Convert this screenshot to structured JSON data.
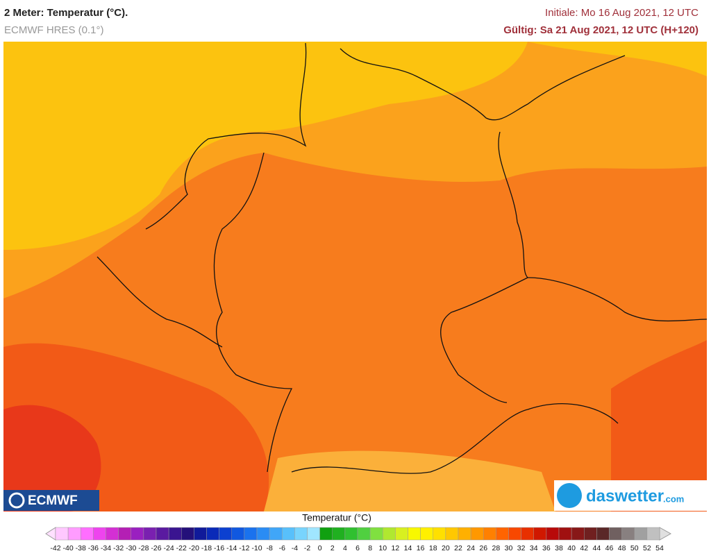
{
  "header": {
    "title": "2 Meter: Temperatur (°C).",
    "model": "ECMWF HRES (0.1°)",
    "initial": "Initiale: Mo 16 Aug 2021, 12 UTC",
    "valid": "Gültig: Sa 21 Aug 2021, 12 UTC (H+120)"
  },
  "logos": {
    "left": "ECMWF",
    "right_brand": "daswetter",
    "right_tld": ".com"
  },
  "legend": {
    "title": "Temperatur (°C)",
    "ticks": [
      -42,
      -40,
      -38,
      -36,
      -34,
      -32,
      -30,
      -28,
      -26,
      -24,
      -22,
      -20,
      -18,
      -16,
      -14,
      -12,
      -10,
      -8,
      -6,
      -4,
      -2,
      0,
      2,
      4,
      6,
      8,
      10,
      12,
      14,
      16,
      18,
      20,
      22,
      24,
      26,
      28,
      30,
      32,
      34,
      36,
      38,
      40,
      42,
      44,
      46,
      48,
      50,
      52,
      54
    ],
    "colors": [
      "#ffc8ff",
      "#ff9cff",
      "#ff6eff",
      "#ee44ee",
      "#d42fd4",
      "#b41fb4",
      "#9a20c0",
      "#7a20b0",
      "#5a1aa0",
      "#3a1490",
      "#24107a",
      "#101a9a",
      "#0a2ab8",
      "#0c40d0",
      "#1058e0",
      "#1a72ee",
      "#2a8cf4",
      "#40a6f8",
      "#58c0fb",
      "#78d4fd",
      "#a0e6ff",
      "#10a010",
      "#20b020",
      "#30c030",
      "#50d040",
      "#80e040",
      "#b0e830",
      "#d8f020",
      "#f8f800",
      "#fff000",
      "#ffe000",
      "#ffc800",
      "#ffb000",
      "#ff9800",
      "#ff8000",
      "#ff6400",
      "#f84800",
      "#e83000",
      "#d01800",
      "#b80a0a",
      "#a01010",
      "#881818",
      "#702020",
      "#5a2828",
      "#706060",
      "#888080",
      "#a0a0a0",
      "#c0c0c0"
    ]
  }
}
